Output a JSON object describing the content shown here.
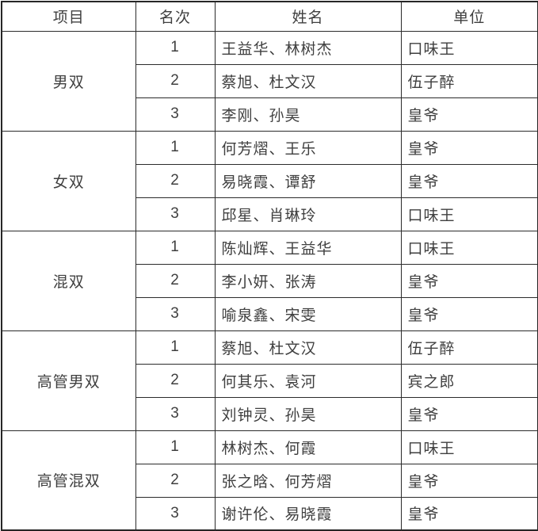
{
  "table": {
    "columns": [
      "项目",
      "名次",
      "姓名",
      "单位"
    ],
    "groups": [
      {
        "label": "男双",
        "rows": [
          {
            "rank": "1",
            "names": "王益华、林树杰",
            "unit": "口味王"
          },
          {
            "rank": "2",
            "names": "蔡旭、杜文汉",
            "unit": "伍子醉"
          },
          {
            "rank": "3",
            "names": "李刚、孙昊",
            "unit": "皇爷"
          }
        ]
      },
      {
        "label": "女双",
        "rows": [
          {
            "rank": "1",
            "names": "何芳熠、王乐",
            "unit": "皇爷"
          },
          {
            "rank": "2",
            "names": "易晓霞、谭舒",
            "unit": "皇爷"
          },
          {
            "rank": "3",
            "names": "邱星、肖琳玲",
            "unit": "口味王"
          }
        ]
      },
      {
        "label": "混双",
        "rows": [
          {
            "rank": "1",
            "names": "陈灿辉、王益华",
            "unit": "口味王"
          },
          {
            "rank": "2",
            "names": "李小妍、张涛",
            "unit": "皇爷"
          },
          {
            "rank": "3",
            "names": "喻泉鑫、宋雯",
            "unit": "皇爷"
          }
        ]
      },
      {
        "label": "高管男双",
        "rows": [
          {
            "rank": "1",
            "names": "蔡旭、杜文汉",
            "unit": "伍子醉"
          },
          {
            "rank": "2",
            "names": "何其乐、袁河",
            "unit": "宾之郎"
          },
          {
            "rank": "3",
            "names": "刘钟灵、孙昊",
            "unit": "皇爷"
          }
        ]
      },
      {
        "label": "高管混双",
        "rows": [
          {
            "rank": "1",
            "names": "林树杰、何霞",
            "unit": "口味王"
          },
          {
            "rank": "2",
            "names": "张之晗、何芳熠",
            "unit": "皇爷"
          },
          {
            "rank": "3",
            "names": "谢许伦、易晓霞",
            "unit": "皇爷"
          }
        ]
      }
    ],
    "colors": {
      "text": "#3f3f3f",
      "border": "#2b2b2b",
      "background": "#ffffff"
    }
  }
}
